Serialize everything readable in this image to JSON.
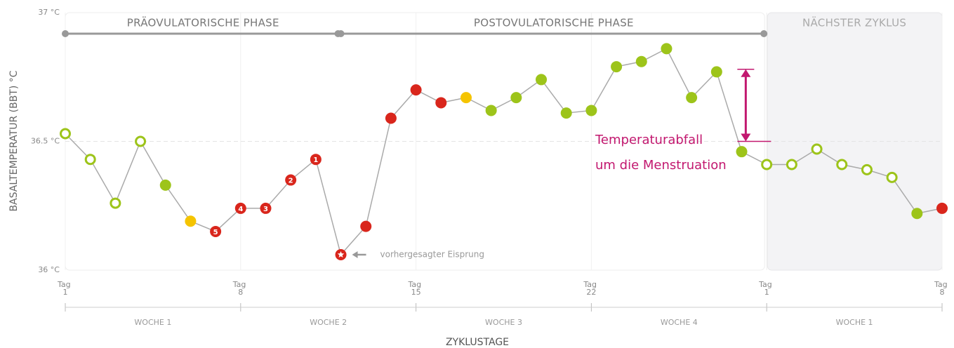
{
  "chart_data": {
    "type": "line",
    "y_label": "BASALTEMPERATUR (BBT) °C",
    "x_label": "ZYKLUSTAGE",
    "x": [
      1,
      2,
      3,
      4,
      5,
      6,
      7,
      8,
      9,
      10,
      11,
      12,
      13,
      14,
      15,
      16,
      17,
      18,
      19,
      20,
      21,
      22,
      23,
      24,
      25,
      26,
      27,
      28,
      29,
      30,
      31,
      32,
      33,
      34,
      35,
      36
    ],
    "series": [
      {
        "color": "#aaaaaa",
        "values": [
          36.53,
          36.43,
          36.26,
          36.5,
          36.33,
          36.19,
          36.15,
          36.24,
          36.24,
          36.35,
          36.43,
          36.06,
          36.17,
          36.59,
          36.7,
          36.65,
          36.67,
          36.62,
          36.67,
          36.74,
          36.61,
          36.62,
          36.79,
          36.81,
          36.86,
          36.67,
          36.77,
          36.46,
          36.41,
          36.41,
          36.47,
          36.41,
          36.39,
          36.36,
          36.22,
          36.24
        ],
        "point_colors": [
          "#9dc41a",
          "#9dc41a",
          "#9dc41a",
          "#9dc41a",
          "#9dc41a",
          "#f5c400",
          "#d9261c",
          "#d9261c",
          "#d9261c",
          "#d9261c",
          "#d9261c",
          "#d9261c",
          "#d9261c",
          "#d9261c",
          "#d9261c",
          "#d9261c",
          "#f5c400",
          "#9dc41a",
          "#9dc41a",
          "#9dc41a",
          "#9dc41a",
          "#9dc41a",
          "#9dc41a",
          "#9dc41a",
          "#9dc41a",
          "#9dc41a",
          "#9dc41a",
          "#9dc41a",
          "#9dc41a",
          "#9dc41a",
          "#9dc41a",
          "#9dc41a",
          "#9dc41a",
          "#9dc41a",
          "#9dc41a",
          "#d9261c"
        ],
        "point_styles": [
          "hollow",
          "hollow",
          "hollow",
          "hollow",
          "filled",
          "filled",
          "filled",
          "filled",
          "filled",
          "filled",
          "filled",
          "star",
          "filled",
          "filled",
          "filled",
          "filled",
          "filled",
          "filled",
          "filled",
          "filled",
          "filled",
          "filled",
          "filled",
          "filled",
          "filled",
          "filled",
          "filled",
          "filled",
          "hollow",
          "hollow",
          "hollow",
          "hollow",
          "hollow",
          "hollow",
          "filled",
          "filled"
        ],
        "point_labels": [
          null,
          null,
          null,
          null,
          null,
          null,
          "5",
          "4",
          "3",
          "2",
          "1",
          null,
          null,
          null,
          null,
          null,
          null,
          null,
          null,
          null,
          null,
          null,
          null,
          null,
          null,
          null,
          null,
          null,
          null,
          null,
          null,
          null,
          null,
          null,
          null,
          null
        ]
      }
    ],
    "xlim": [
      1,
      36
    ],
    "ylim": [
      36,
      37
    ],
    "yticks": [
      {
        "value": 36,
        "label": "36 °C"
      },
      {
        "value": 36.5,
        "label": "36.5 °C"
      },
      {
        "value": 37,
        "label": "37 °C"
      }
    ],
    "xticks": [
      {
        "value": 1,
        "label": "Tag 1"
      },
      {
        "value": 8,
        "label": "Tag 8"
      },
      {
        "value": 15,
        "label": "Tag 15"
      },
      {
        "value": 22,
        "label": "Tag 22"
      },
      {
        "value": 29,
        "label": "Tag 1"
      },
      {
        "value": 36,
        "label": "Tag 8"
      }
    ],
    "phases": [
      {
        "label": "PRÄOVULATORISCHE PHASE",
        "start": 1,
        "end": 12
      },
      {
        "label": "POSTOVULATORISCHE PHASE",
        "start": 12,
        "end": 29
      },
      {
        "label": "NÄCHSTER ZYKLUS",
        "start": 29,
        "end": 36
      }
    ],
    "weeks": [
      {
        "label": "WOCHE 1",
        "start": 1,
        "end": 8
      },
      {
        "label": "WOCHE 2",
        "start": 8,
        "end": 15
      },
      {
        "label": "WOCHE 3",
        "start": 15,
        "end": 22
      },
      {
        "label": "WOCHE 4",
        "start": 22,
        "end": 29
      },
      {
        "label": "WOCHE 1",
        "start": 29,
        "end": 36
      }
    ],
    "annotations": {
      "ovulation": {
        "text": "vorhergesagter Eisprung",
        "x": 12,
        "y": 36.06
      },
      "drop": {
        "lines": [
          "Temperaturabfall",
          "um die Menstruation"
        ],
        "from": 36.78,
        "to": 36.5
      }
    }
  }
}
